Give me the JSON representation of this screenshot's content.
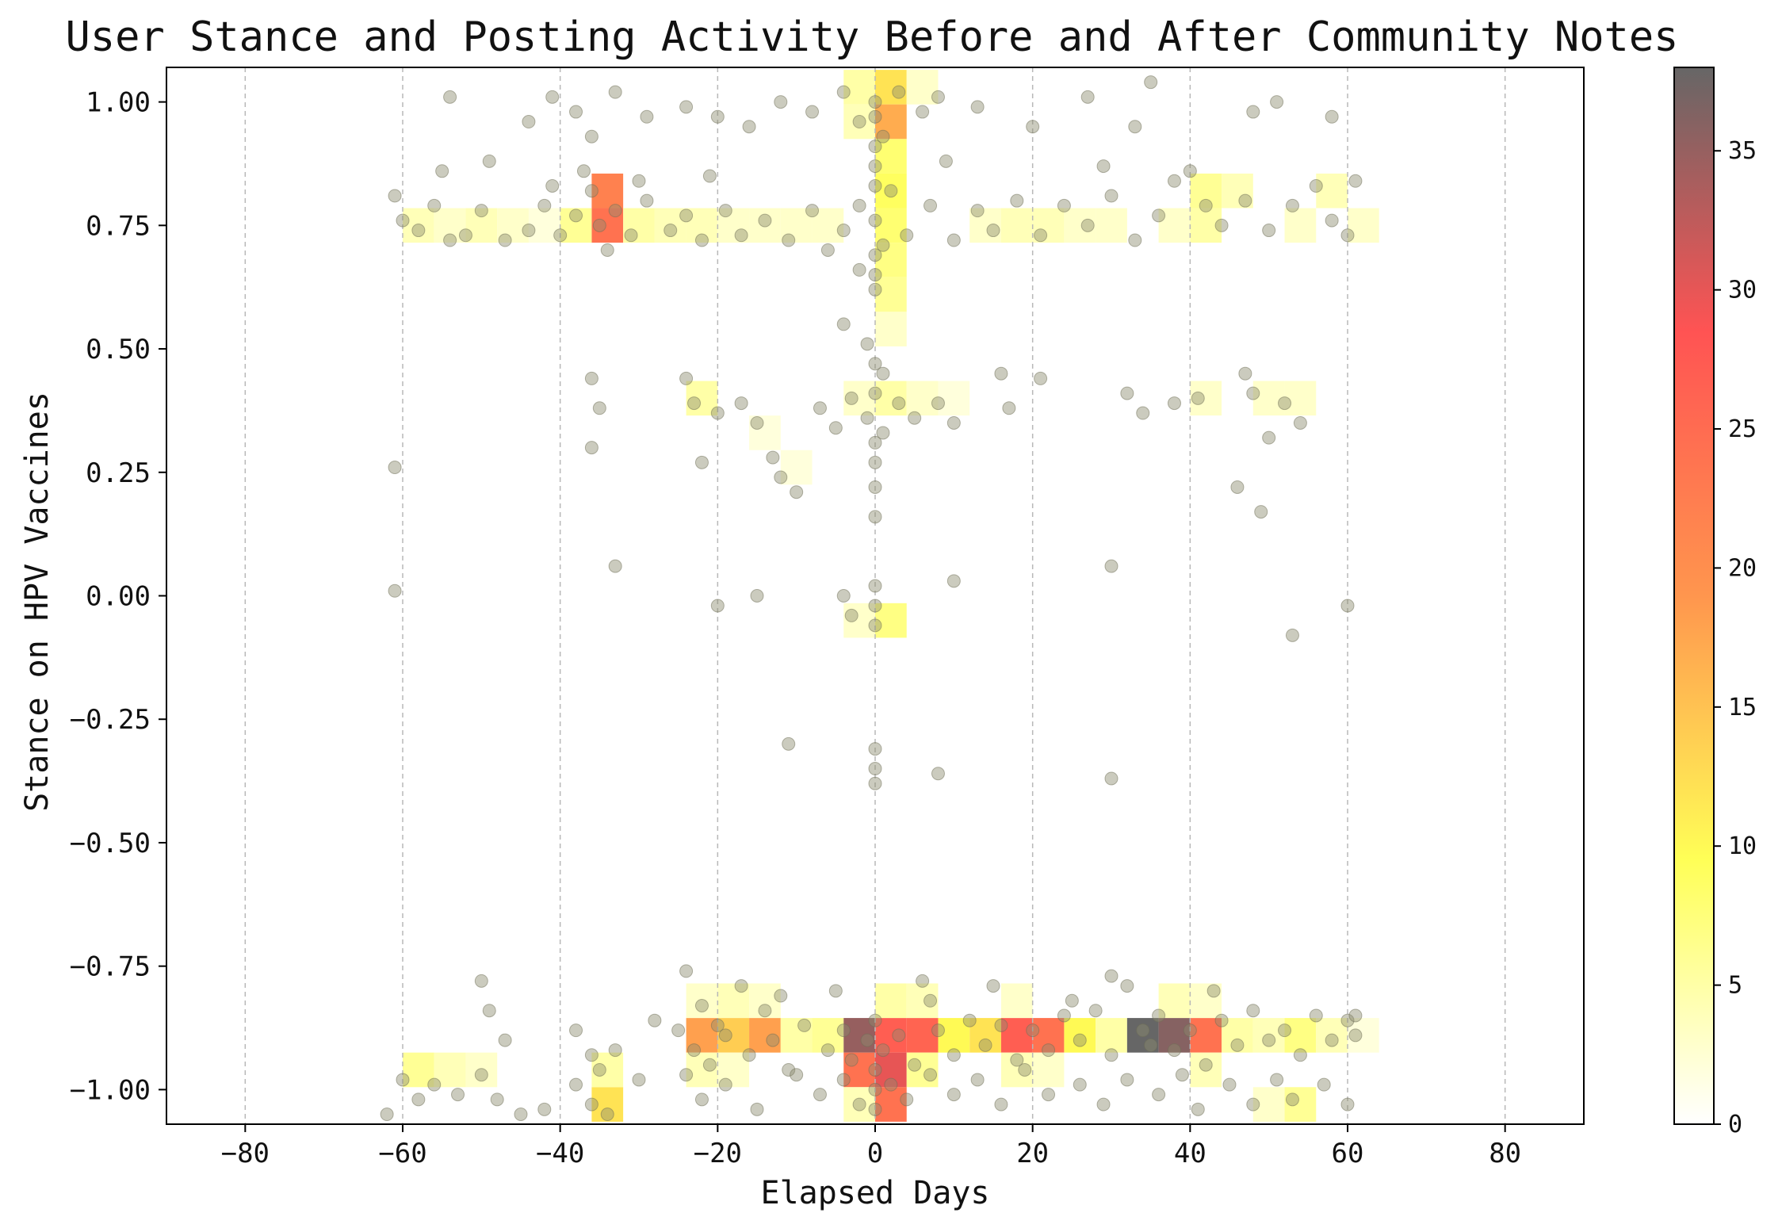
{
  "chart_data": {
    "type": "heatmap",
    "title": "User Stance and Posting Activity Before and After Community Notes",
    "xlabel": "Elapsed Days",
    "ylabel": "Stance on HPV Vaccines",
    "xlim": [
      -90,
      90
    ],
    "ylim": [
      -1.07,
      1.07
    ],
    "xticks": [
      -80,
      -60,
      -40,
      -20,
      0,
      20,
      40,
      60,
      80
    ],
    "xtick_labels": [
      "−80",
      "−60",
      "−40",
      "−20",
      "0",
      "20",
      "40",
      "60",
      "80"
    ],
    "yticks": [
      1.0,
      0.75,
      0.5,
      0.25,
      0.0,
      -0.25,
      -0.5,
      -0.75,
      -1.0
    ],
    "ytick_labels": [
      "1.00",
      "0.75",
      "0.50",
      "0.25",
      "0.00",
      "−0.25",
      "−0.50",
      "−0.75",
      "−1.00"
    ],
    "grid": "vertical dashed",
    "colorbar": {
      "min": 0,
      "max": 38,
      "ticks": [
        0,
        5,
        10,
        15,
        20,
        25,
        30,
        35
      ],
      "tick_labels": [
        "0",
        "5",
        "10",
        "15",
        "20",
        "25",
        "30",
        "35"
      ],
      "colors": [
        "#ffffff",
        "#ffff44",
        "#ff8a3a",
        "#ff4040",
        "#555555"
      ]
    },
    "bin_size": {
      "days": 4,
      "stance": 0.07
    },
    "heatmap_cells": [
      [
        0,
        1.03,
        12
      ],
      [
        0,
        0.96,
        17
      ],
      [
        -4,
        1.03,
        5
      ],
      [
        -4,
        0.96,
        4
      ],
      [
        4,
        1.03,
        3
      ],
      [
        0,
        0.89,
        8
      ],
      [
        0,
        0.82,
        9
      ],
      [
        0,
        0.75,
        8
      ],
      [
        0,
        0.68,
        7
      ],
      [
        0,
        0.61,
        6
      ],
      [
        -36,
        0.82,
        22
      ],
      [
        -36,
        0.75,
        24
      ],
      [
        -40,
        0.75,
        6
      ],
      [
        -32,
        0.75,
        5
      ],
      [
        -28,
        0.75,
        4
      ],
      [
        -60,
        0.75,
        4
      ],
      [
        -56,
        0.75,
        3
      ],
      [
        -52,
        0.75,
        4
      ],
      [
        -48,
        0.75,
        3
      ],
      [
        -44,
        0.75,
        2
      ],
      [
        -24,
        0.75,
        4
      ],
      [
        -20,
        0.75,
        3
      ],
      [
        -16,
        0.75,
        3
      ],
      [
        -12,
        0.75,
        3
      ],
      [
        -8,
        0.75,
        3
      ],
      [
        12,
        0.75,
        3
      ],
      [
        16,
        0.75,
        4
      ],
      [
        20,
        0.75,
        4
      ],
      [
        24,
        0.75,
        3
      ],
      [
        28,
        0.75,
        3
      ],
      [
        40,
        0.82,
        6
      ],
      [
        40,
        0.75,
        5
      ],
      [
        44,
        0.82,
        4
      ],
      [
        36,
        0.75,
        3
      ],
      [
        52,
        0.75,
        3
      ],
      [
        56,
        0.82,
        4
      ],
      [
        60,
        0.75,
        3
      ],
      [
        -24,
        0.4,
        5
      ],
      [
        0,
        0.4,
        5
      ],
      [
        -4,
        0.4,
        3
      ],
      [
        4,
        0.4,
        3
      ],
      [
        8,
        0.4,
        2
      ],
      [
        -16,
        0.33,
        2
      ],
      [
        -12,
        0.26,
        2
      ],
      [
        40,
        0.4,
        3
      ],
      [
        48,
        0.4,
        3
      ],
      [
        52,
        0.4,
        3
      ],
      [
        0,
        0.54,
        3
      ],
      [
        0,
        -0.05,
        7
      ],
      [
        -4,
        -0.05,
        3
      ],
      [
        -24,
        -0.89,
        18
      ],
      [
        -20,
        -0.89,
        14
      ],
      [
        -16,
        -0.89,
        18
      ],
      [
        -12,
        -0.89,
        5
      ],
      [
        -8,
        -0.89,
        6
      ],
      [
        -4,
        -0.89,
        35
      ],
      [
        0,
        -0.89,
        27
      ],
      [
        4,
        -0.89,
        26
      ],
      [
        8,
        -0.89,
        10
      ],
      [
        12,
        -0.89,
        12
      ],
      [
        16,
        -0.89,
        27
      ],
      [
        20,
        -0.89,
        24
      ],
      [
        24,
        -0.89,
        10
      ],
      [
        28,
        -0.89,
        5
      ],
      [
        32,
        -0.89,
        38
      ],
      [
        36,
        -0.89,
        36
      ],
      [
        40,
        -0.89,
        24
      ],
      [
        44,
        -0.89,
        5
      ],
      [
        48,
        -0.89,
        4
      ],
      [
        52,
        -0.89,
        7
      ],
      [
        56,
        -0.89,
        4
      ],
      [
        60,
        -0.89,
        2
      ],
      [
        -4,
        -0.96,
        24
      ],
      [
        0,
        -0.96,
        30
      ],
      [
        0,
        -1.03,
        24
      ],
      [
        -4,
        -1.03,
        4
      ],
      [
        4,
        -0.96,
        6
      ],
      [
        -36,
        -1.03,
        12
      ],
      [
        -36,
        -0.96,
        5
      ],
      [
        -60,
        -0.96,
        6
      ],
      [
        -56,
        -0.96,
        4
      ],
      [
        -52,
        -0.96,
        3
      ],
      [
        -24,
        -0.96,
        4
      ],
      [
        -20,
        -0.96,
        3
      ],
      [
        16,
        -0.96,
        4
      ],
      [
        20,
        -0.96,
        3
      ],
      [
        40,
        -0.96,
        4
      ],
      [
        52,
        -1.03,
        6
      ],
      [
        48,
        -1.03,
        3
      ],
      [
        -24,
        -0.82,
        3
      ],
      [
        -20,
        -0.82,
        4
      ],
      [
        -16,
        -0.82,
        3
      ],
      [
        0,
        -0.82,
        5
      ],
      [
        4,
        -0.82,
        4
      ],
      [
        16,
        -0.82,
        3
      ],
      [
        36,
        -0.82,
        4
      ],
      [
        40,
        -0.82,
        3
      ]
    ],
    "scatter_points": [
      [
        -61,
        0.81
      ],
      [
        -60,
        0.76
      ],
      [
        -58,
        0.74
      ],
      [
        -56,
        0.79
      ],
      [
        -54,
        0.72
      ],
      [
        -52,
        0.73
      ],
      [
        -50,
        0.78
      ],
      [
        -47,
        0.72
      ],
      [
        -44,
        0.74
      ],
      [
        -42,
        0.79
      ],
      [
        -40,
        0.73
      ],
      [
        -38,
        0.77
      ],
      [
        -36,
        0.82
      ],
      [
        -35,
        0.75
      ],
      [
        -34,
        0.7
      ],
      [
        -33,
        0.78
      ],
      [
        -31,
        0.73
      ],
      [
        -29,
        0.8
      ],
      [
        -26,
        0.74
      ],
      [
        -24,
        0.77
      ],
      [
        -22,
        0.72
      ],
      [
        -19,
        0.78
      ],
      [
        -17,
        0.73
      ],
      [
        -14,
        0.76
      ],
      [
        -11,
        0.72
      ],
      [
        -8,
        0.78
      ],
      [
        -6,
        0.7
      ],
      [
        -4,
        0.74
      ],
      [
        -2,
        0.79
      ],
      [
        0,
        0.76
      ],
      [
        1,
        0.71
      ],
      [
        2,
        0.82
      ],
      [
        4,
        0.73
      ],
      [
        7,
        0.79
      ],
      [
        10,
        0.72
      ],
      [
        13,
        0.78
      ],
      [
        15,
        0.74
      ],
      [
        18,
        0.8
      ],
      [
        21,
        0.73
      ],
      [
        24,
        0.79
      ],
      [
        27,
        0.75
      ],
      [
        30,
        0.81
      ],
      [
        33,
        0.72
      ],
      [
        36,
        0.77
      ],
      [
        38,
        0.84
      ],
      [
        40,
        0.86
      ],
      [
        42,
        0.79
      ],
      [
        44,
        0.75
      ],
      [
        47,
        0.8
      ],
      [
        50,
        0.74
      ],
      [
        53,
        0.79
      ],
      [
        56,
        0.83
      ],
      [
        58,
        0.76
      ],
      [
        60,
        0.73
      ],
      [
        61,
        0.84
      ],
      [
        -55,
        0.86
      ],
      [
        -49,
        0.88
      ],
      [
        -41,
        0.83
      ],
      [
        -37,
        0.86
      ],
      [
        -30,
        0.84
      ],
      [
        -21,
        0.85
      ],
      [
        9,
        0.88
      ],
      [
        29,
        0.87
      ],
      [
        -44,
        0.96
      ],
      [
        -41,
        1.01
      ],
      [
        -38,
        0.98
      ],
      [
        -36,
        0.93
      ],
      [
        -33,
        1.02
      ],
      [
        -24,
        0.99
      ],
      [
        -20,
        0.97
      ],
      [
        -16,
        0.95
      ],
      [
        -12,
        1.0
      ],
      [
        -8,
        0.98
      ],
      [
        -4,
        1.02
      ],
      [
        -2,
        0.96
      ],
      [
        0,
        1.0
      ],
      [
        0,
        0.97
      ],
      [
        1,
        0.93
      ],
      [
        3,
        1.02
      ],
      [
        6,
        0.98
      ],
      [
        8,
        1.01
      ],
      [
        13,
        0.99
      ],
      [
        20,
        0.95
      ],
      [
        27,
        1.01
      ],
      [
        33,
        0.95
      ],
      [
        35,
        1.04
      ],
      [
        48,
        0.98
      ],
      [
        51,
        1.0
      ],
      [
        58,
        0.97
      ],
      [
        -54,
        1.01
      ],
      [
        -29,
        0.97
      ],
      [
        0,
        0.91
      ],
      [
        0,
        0.87
      ],
      [
        0,
        0.83
      ],
      [
        0,
        0.69
      ],
      [
        0,
        0.65
      ],
      [
        0,
        0.62
      ],
      [
        -2,
        0.66
      ],
      [
        -4,
        0.55
      ],
      [
        -1,
        0.51
      ],
      [
        0,
        0.47
      ],
      [
        1,
        0.45
      ],
      [
        -24,
        0.44
      ],
      [
        -23,
        0.39
      ],
      [
        -20,
        0.37
      ],
      [
        -17,
        0.39
      ],
      [
        -15,
        0.35
      ],
      [
        -13,
        0.28
      ],
      [
        -12,
        0.24
      ],
      [
        -10,
        0.21
      ],
      [
        -7,
        0.38
      ],
      [
        -5,
        0.34
      ],
      [
        -3,
        0.4
      ],
      [
        -1,
        0.36
      ],
      [
        0,
        0.41
      ],
      [
        1,
        0.33
      ],
      [
        3,
        0.39
      ],
      [
        5,
        0.36
      ],
      [
        8,
        0.39
      ],
      [
        10,
        0.35
      ],
      [
        16,
        0.45
      ],
      [
        17,
        0.38
      ],
      [
        21,
        0.44
      ],
      [
        32,
        0.41
      ],
      [
        34,
        0.37
      ],
      [
        38,
        0.39
      ],
      [
        41,
        0.4
      ],
      [
        47,
        0.45
      ],
      [
        48,
        0.41
      ],
      [
        50,
        0.32
      ],
      [
        52,
        0.39
      ],
      [
        54,
        0.35
      ],
      [
        -36,
        0.44
      ],
      [
        -35,
        0.38
      ],
      [
        -36,
        0.3
      ],
      [
        -61,
        0.26
      ],
      [
        -22,
        0.27
      ],
      [
        0,
        0.31
      ],
      [
        0,
        0.27
      ],
      [
        0,
        0.22
      ],
      [
        0,
        0.16
      ],
      [
        46,
        0.22
      ],
      [
        49,
        0.17
      ],
      [
        -61,
        0.01
      ],
      [
        -33,
        0.06
      ],
      [
        -20,
        -0.02
      ],
      [
        -15,
        0.0
      ],
      [
        -4,
        0.0
      ],
      [
        -3,
        -0.04
      ],
      [
        0,
        -0.02
      ],
      [
        0,
        -0.06
      ],
      [
        0,
        0.02
      ],
      [
        10,
        0.03
      ],
      [
        30,
        0.06
      ],
      [
        53,
        -0.08
      ],
      [
        60,
        -0.02
      ],
      [
        -11,
        -0.3
      ],
      [
        0,
        -0.31
      ],
      [
        0,
        -0.35
      ],
      [
        0,
        -0.38
      ],
      [
        8,
        -0.36
      ],
      [
        30,
        -0.37
      ],
      [
        -50,
        -0.78
      ],
      [
        -49,
        -0.84
      ],
      [
        -47,
        -0.9
      ],
      [
        -24,
        -0.76
      ],
      [
        -22,
        -0.83
      ],
      [
        -20,
        -0.87
      ],
      [
        -17,
        -0.79
      ],
      [
        -14,
        -0.84
      ],
      [
        -12,
        -0.81
      ],
      [
        -25,
        -0.88
      ],
      [
        -23,
        -0.92
      ],
      [
        -21,
        -0.95
      ],
      [
        -19,
        -0.89
      ],
      [
        -16,
        -0.93
      ],
      [
        -13,
        -0.9
      ],
      [
        -11,
        -0.96
      ],
      [
        -9,
        -0.87
      ],
      [
        -6,
        -0.92
      ],
      [
        -4,
        -0.88
      ],
      [
        -3,
        -0.94
      ],
      [
        -1,
        -0.9
      ],
      [
        0,
        -0.86
      ],
      [
        1,
        -0.92
      ],
      [
        3,
        -0.89
      ],
      [
        5,
        -0.95
      ],
      [
        7,
        -0.82
      ],
      [
        8,
        -0.88
      ],
      [
        10,
        -0.93
      ],
      [
        12,
        -0.86
      ],
      [
        14,
        -0.91
      ],
      [
        16,
        -0.87
      ],
      [
        18,
        -0.94
      ],
      [
        20,
        -0.88
      ],
      [
        22,
        -0.92
      ],
      [
        24,
        -0.85
      ],
      [
        26,
        -0.9
      ],
      [
        28,
        -0.84
      ],
      [
        30,
        -0.93
      ],
      [
        32,
        -0.79
      ],
      [
        34,
        -0.88
      ],
      [
        35,
        -0.91
      ],
      [
        36,
        -0.85
      ],
      [
        38,
        -0.92
      ],
      [
        40,
        -0.88
      ],
      [
        42,
        -0.95
      ],
      [
        44,
        -0.86
      ],
      [
        46,
        -0.91
      ],
      [
        48,
        -0.84
      ],
      [
        50,
        -0.9
      ],
      [
        52,
        -0.88
      ],
      [
        54,
        -0.93
      ],
      [
        56,
        -0.85
      ],
      [
        58,
        -0.9
      ],
      [
        60,
        -0.86
      ],
      [
        61,
        -0.89
      ],
      [
        -62,
        -1.05
      ],
      [
        -60,
        -0.98
      ],
      [
        -58,
        -1.02
      ],
      [
        -56,
        -0.99
      ],
      [
        -53,
        -1.01
      ],
      [
        -50,
        -0.97
      ],
      [
        -48,
        -1.02
      ],
      [
        -45,
        -1.05
      ],
      [
        -42,
        -1.04
      ],
      [
        -38,
        -0.99
      ],
      [
        -36,
        -1.03
      ],
      [
        -35,
        -0.96
      ],
      [
        -34,
        -1.05
      ],
      [
        -30,
        -0.98
      ],
      [
        -24,
        -0.97
      ],
      [
        -22,
        -1.02
      ],
      [
        -19,
        -0.99
      ],
      [
        -15,
        -1.04
      ],
      [
        -10,
        -0.97
      ],
      [
        -7,
        -1.01
      ],
      [
        -4,
        -0.98
      ],
      [
        -2,
        -1.03
      ],
      [
        0,
        -0.96
      ],
      [
        0,
        -1.0
      ],
      [
        0,
        -1.04
      ],
      [
        2,
        -0.99
      ],
      [
        4,
        -1.02
      ],
      [
        7,
        -0.97
      ],
      [
        10,
        -1.01
      ],
      [
        13,
        -0.98
      ],
      [
        16,
        -1.03
      ],
      [
        19,
        -0.96
      ],
      [
        22,
        -1.01
      ],
      [
        26,
        -0.99
      ],
      [
        29,
        -1.03
      ],
      [
        32,
        -0.98
      ],
      [
        36,
        -1.01
      ],
      [
        39,
        -0.97
      ],
      [
        41,
        -1.04
      ],
      [
        45,
        -0.99
      ],
      [
        48,
        -1.03
      ],
      [
        51,
        -0.98
      ],
      [
        53,
        -1.02
      ],
      [
        57,
        -0.99
      ],
      [
        60,
        -1.03
      ],
      [
        61,
        -0.85
      ],
      [
        -38,
        -0.88
      ],
      [
        -36,
        -0.93
      ],
      [
        -33,
        -0.92
      ],
      [
        -28,
        -0.86
      ],
      [
        -5,
        -0.8
      ],
      [
        6,
        -0.78
      ],
      [
        15,
        -0.79
      ],
      [
        25,
        -0.82
      ],
      [
        30,
        -0.77
      ],
      [
        43,
        -0.8
      ]
    ]
  }
}
